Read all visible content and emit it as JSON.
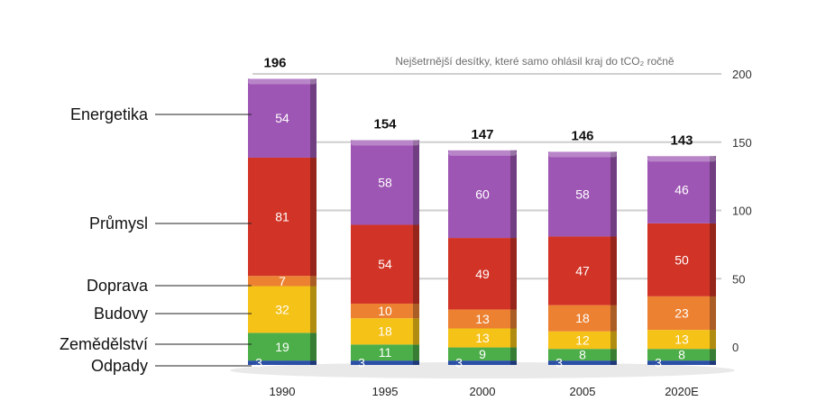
{
  "chart_data": {
    "type": "bar",
    "stacked": true,
    "title": "Nejšetrnější desítky, které samo ohlásil kraj do tCO₂ ročně",
    "categories": [
      "1990",
      "1995",
      "2000",
      "2005",
      "2020E"
    ],
    "totals": [
      196,
      154,
      147,
      146,
      143
    ],
    "series": [
      {
        "name": "Odpady",
        "values": [
          3,
          3,
          3,
          3,
          3
        ],
        "color": "#2b4fa6"
      },
      {
        "name": "Zemědělství",
        "values": [
          19,
          11,
          9,
          8,
          8
        ],
        "color": "#4cae48"
      },
      {
        "name": "Budovy",
        "values": [
          32,
          18,
          13,
          12,
          13
        ],
        "color": "#f5c218"
      },
      {
        "name": "Doprava",
        "values": [
          7,
          10,
          13,
          18,
          23
        ],
        "color": "#ec8132"
      },
      {
        "name": "Průmysl",
        "values": [
          81,
          54,
          49,
          47,
          50
        ],
        "color": "#d13427"
      },
      {
        "name": "Energetika",
        "values": [
          54,
          58,
          60,
          58,
          46
        ],
        "color": "#9e56b4"
      }
    ],
    "yticks": [
      0,
      50,
      100,
      150,
      200
    ],
    "ylim": [
      0,
      200
    ],
    "grid": true,
    "legend": "left"
  }
}
